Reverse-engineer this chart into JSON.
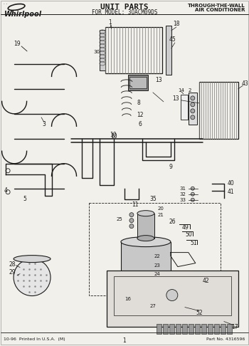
{
  "title": "UNIT PARTS",
  "subtitle": "FOR MODEL: 3QACM09DS",
  "right_header_line1": "THROUGH-THE-WALL",
  "right_header_line2": "AIR CONDITIONER",
  "footer_left": "10-96  Printed In U.S.A.  (M)",
  "footer_center": "1",
  "footer_right": "Part No. 4316596",
  "bg_color": "#f2f0eb",
  "tc": "#1a1a1a",
  "fig_width": 3.5,
  "fig_height": 4.86,
  "dpi": 100
}
